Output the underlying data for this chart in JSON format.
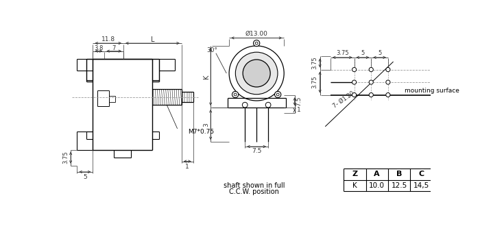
{
  "bg_color": "#ffffff",
  "line_color": "#000000",
  "dim_color": "#333333",
  "table_headers": [
    "Z",
    "A",
    "B",
    "C"
  ],
  "table_row1": [
    "K",
    "10.0",
    "12.5",
    "14,5"
  ],
  "shaft_text_1": "shaft shown in full",
  "shaft_text_2": "C.C.W. position",
  "mounting_text": "mounting surface"
}
